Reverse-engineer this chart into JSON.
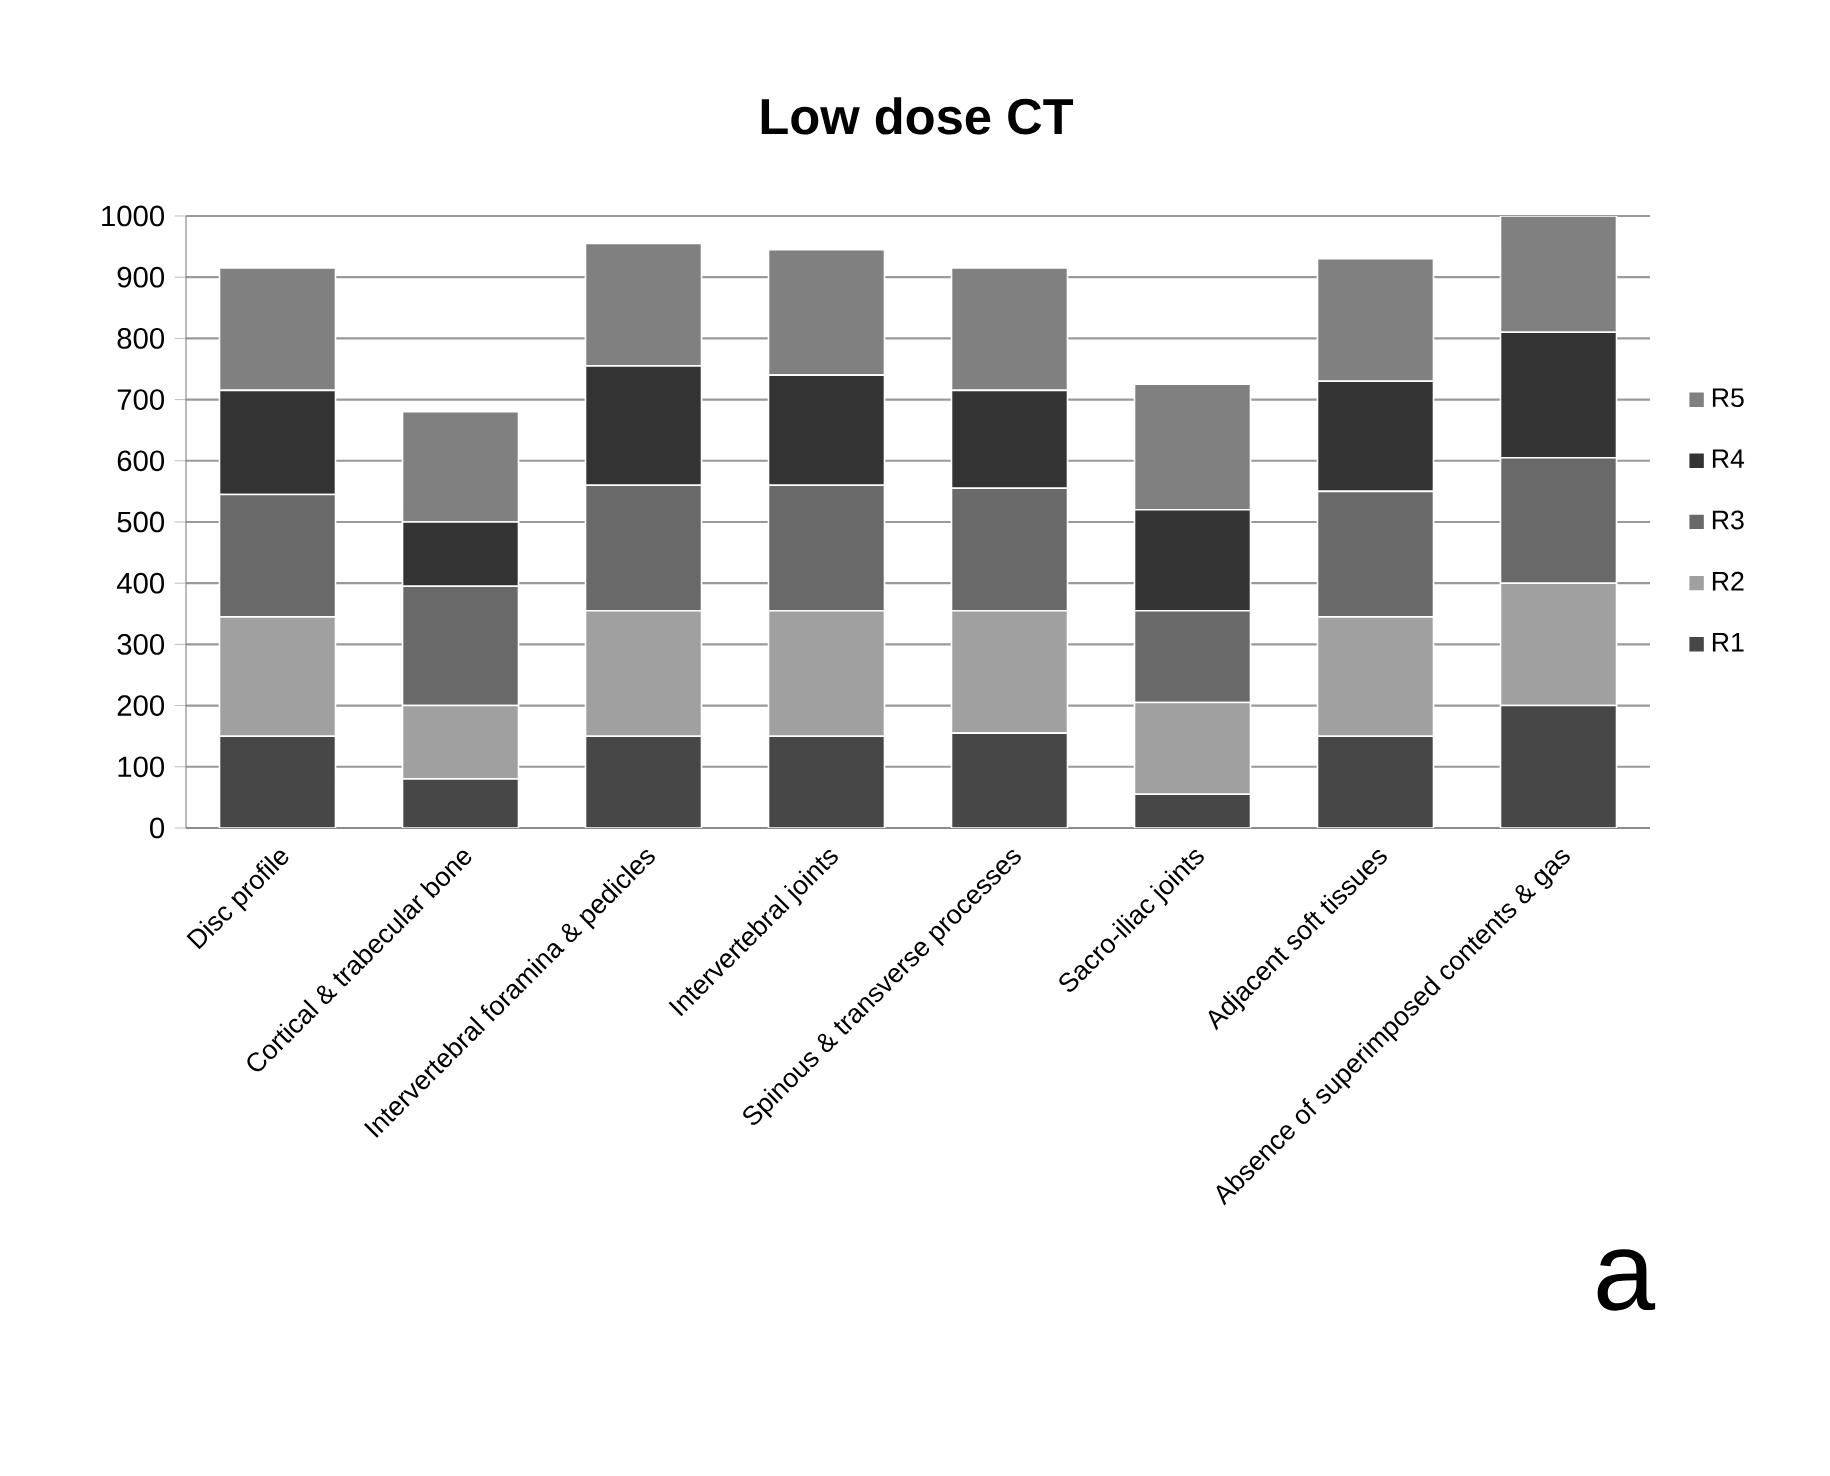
{
  "chart_data": {
    "type": "bar",
    "title": "Low dose CT",
    "stacked": true,
    "categories": [
      "Disc profile",
      "Cortical & trabecular bone",
      "Intervertebral foramina & pedicles",
      "Intervertebral joints",
      "Spinous & transverse processes",
      "Sacro-iliac joints",
      "Adjacent soft tissues",
      "Absence of superimposed contents & gas"
    ],
    "series": [
      {
        "name": "R1",
        "color": "#474747",
        "values": [
          150,
          80,
          150,
          150,
          155,
          55,
          150,
          200
        ]
      },
      {
        "name": "R2",
        "color": "#a0a0a0",
        "values": [
          195,
          120,
          205,
          205,
          200,
          150,
          195,
          200
        ]
      },
      {
        "name": "R3",
        "color": "#696969",
        "values": [
          200,
          195,
          205,
          205,
          200,
          150,
          205,
          205
        ]
      },
      {
        "name": "R4",
        "color": "#333333",
        "values": [
          170,
          105,
          195,
          180,
          160,
          165,
          180,
          205
        ]
      },
      {
        "name": "R5",
        "color": "#808080",
        "values": [
          200,
          180,
          200,
          205,
          200,
          205,
          200,
          190
        ]
      }
    ],
    "ylim": [
      0,
      1000
    ],
    "yticks": [
      0,
      100,
      200,
      300,
      400,
      500,
      600,
      700,
      800,
      900,
      1000
    ],
    "grid": "y",
    "legend": "right",
    "annotations": [
      "a"
    ]
  }
}
